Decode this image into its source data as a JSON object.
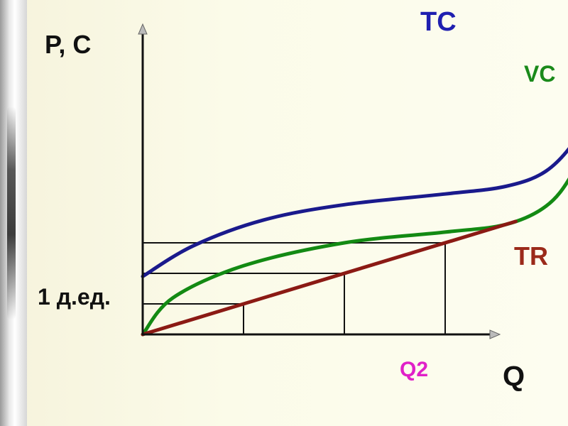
{
  "chart_data": {
    "type": "line",
    "ylabel": "P, C",
    "xlabel": "Q",
    "unit_label": "1 д.ед.",
    "q_marker_label": "Q2",
    "series": [
      {
        "name": "TC",
        "color": "#1a1a8c",
        "values": [
          [
            0,
            1.9
          ],
          [
            0.5,
            2.9
          ],
          [
            1.2,
            3.75
          ],
          [
            2,
            4.25
          ],
          [
            3,
            4.6
          ],
          [
            3.6,
            4.85
          ],
          [
            4,
            5.35
          ],
          [
            4.3,
            6.4
          ],
          [
            4.5,
            7.7
          ],
          [
            4.6,
            8.85
          ]
        ]
      },
      {
        "name": "VC",
        "color": "#138a13",
        "values": [
          [
            0,
            0
          ],
          [
            0.3,
            1.2
          ],
          [
            1,
            2.25
          ],
          [
            2,
            3.0
          ],
          [
            3,
            3.35
          ],
          [
            3.6,
            3.6
          ],
          [
            4,
            4.2
          ],
          [
            4.25,
            5.2
          ],
          [
            4.45,
            6.7
          ],
          [
            4.6,
            7.9
          ]
        ]
      },
      {
        "name": "TR",
        "color": "#8b1a14",
        "values": [
          [
            0,
            0
          ],
          [
            3.7,
            3.7
          ]
        ]
      }
    ],
    "guides": [
      {
        "x": 1,
        "y": 1
      },
      {
        "x": 2,
        "y": 2
      },
      {
        "x": 3,
        "y": 3
      }
    ]
  }
}
